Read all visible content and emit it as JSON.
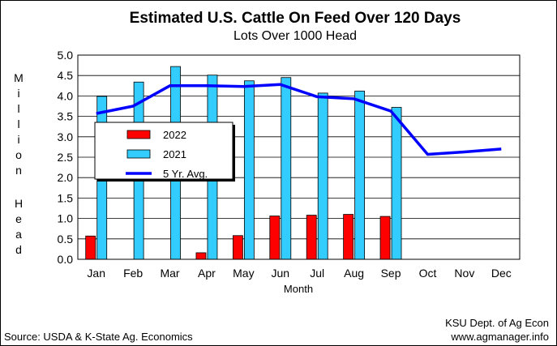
{
  "chart_data": {
    "type": "bar",
    "title": "Estimated U.S. Cattle On Feed Over 120 Days",
    "subtitle": "Lots Over 1000 Head",
    "xlabel": "Month",
    "ylabel": "Million Head",
    "ylim": [
      0,
      5.0
    ],
    "yticks": [
      "0.0",
      "0.5",
      "1.0",
      "1.5",
      "2.0",
      "2.5",
      "3.0",
      "3.5",
      "4.0",
      "4.5",
      "5.0"
    ],
    "categories": [
      "Jan",
      "Feb",
      "Mar",
      "Apr",
      "May",
      "Jun",
      "Jul",
      "Aug",
      "Sep",
      "Oct",
      "Nov",
      "Dec"
    ],
    "grid": true,
    "legend_position": "center-left",
    "series": [
      {
        "name": "2022",
        "type": "bar",
        "color": "#ff0000",
        "values": [
          0.57,
          null,
          null,
          0.16,
          0.58,
          1.06,
          1.08,
          1.1,
          1.05,
          null,
          null,
          null
        ]
      },
      {
        "name": "2021",
        "type": "bar",
        "color": "#33ccff",
        "values": [
          3.99,
          4.34,
          4.72,
          4.51,
          4.37,
          4.45,
          4.07,
          4.12,
          3.72,
          null,
          null,
          null
        ]
      },
      {
        "name": "5 Yr. Avg.",
        "type": "line",
        "color": "#0000ff",
        "values": [
          3.57,
          3.75,
          4.25,
          4.25,
          4.23,
          4.28,
          3.98,
          3.93,
          3.63,
          2.57,
          2.63,
          2.7
        ]
      }
    ]
  },
  "footer": {
    "source": "Source:  USDA & K-State Ag. Economics",
    "credit_line1": "KSU Dept. of Ag Econ",
    "credit_line2": "www.agmanager.info"
  }
}
